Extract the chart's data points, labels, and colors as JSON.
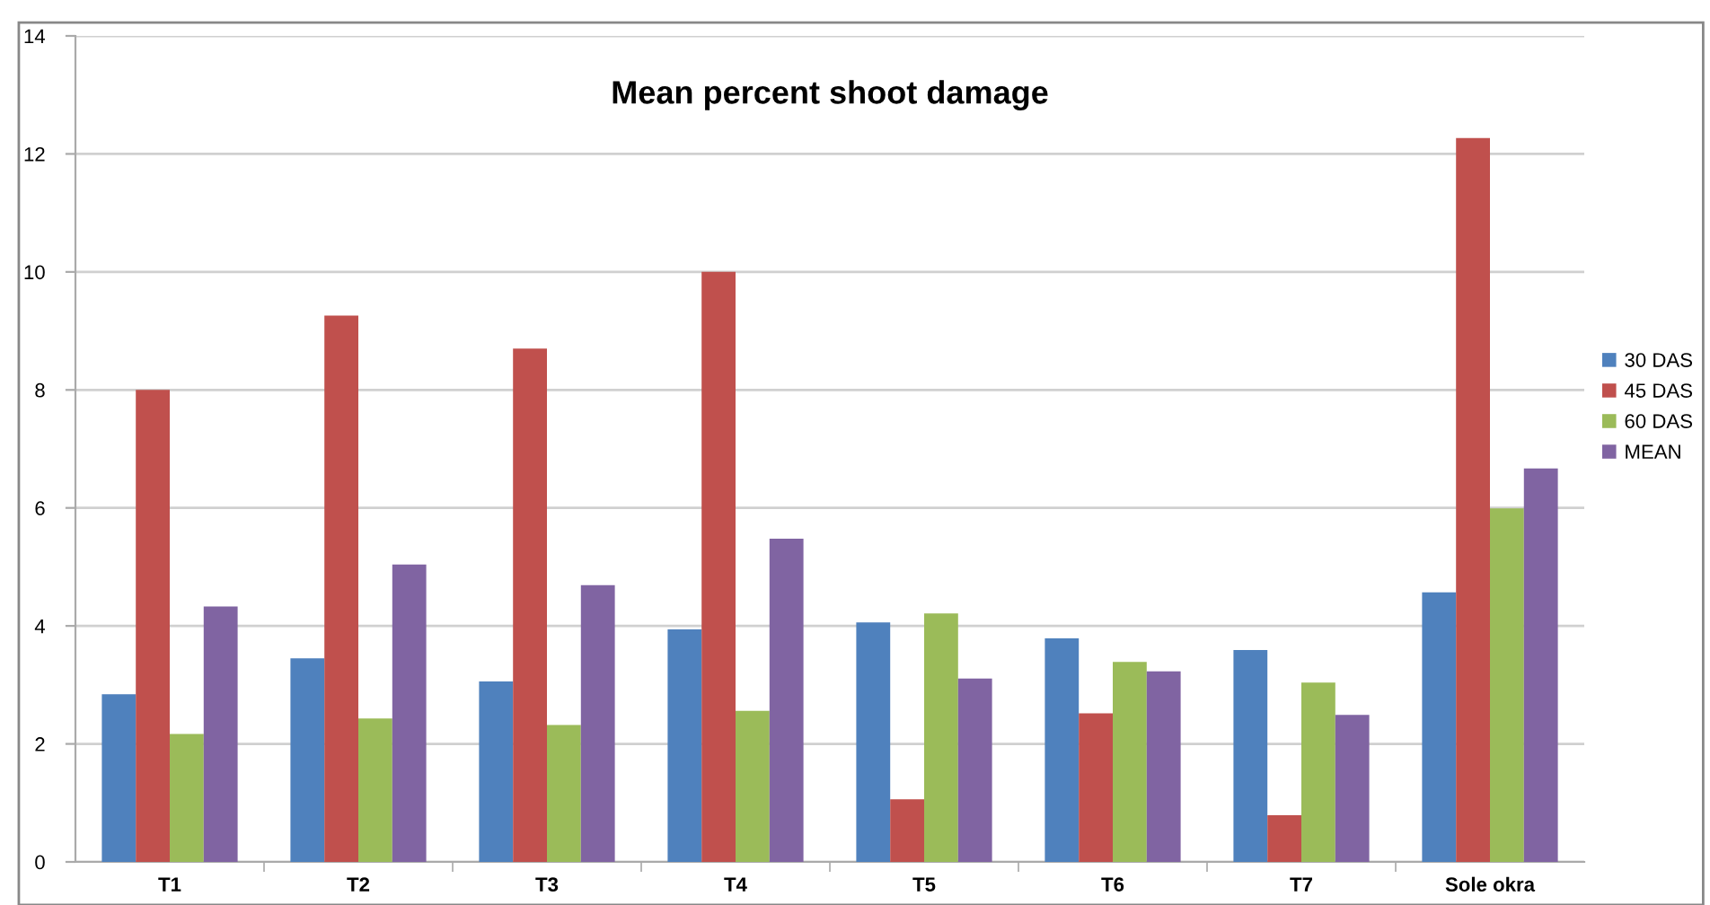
{
  "chart_data": {
    "type": "bar",
    "title": "Mean percent shoot damage",
    "categories": [
      "T1",
      "T2",
      "T3",
      "T4",
      "T5",
      "T6",
      "T7",
      "Sole okra"
    ],
    "series": [
      {
        "name": "30 DAS",
        "color": "#4f81bd",
        "values": [
          2.84,
          3.45,
          3.06,
          3.94,
          4.06,
          3.79,
          3.59,
          4.57
        ]
      },
      {
        "name": "45 DAS",
        "color": "#c0504d",
        "values": [
          8.0,
          9.26,
          8.7,
          10.0,
          1.06,
          2.52,
          0.79,
          12.27
        ]
      },
      {
        "name": "60 DAS",
        "color": "#9bbb59",
        "values": [
          2.17,
          2.43,
          2.32,
          2.56,
          4.21,
          3.39,
          3.04,
          5.99
        ]
      },
      {
        "name": "MEAN",
        "color": "#8064a2",
        "values": [
          4.33,
          5.04,
          4.69,
          5.48,
          3.11,
          3.23,
          2.49,
          6.67
        ]
      }
    ],
    "ylim": [
      0,
      14
    ],
    "yticks": [
      0,
      2,
      4,
      6,
      8,
      10,
      12,
      14
    ],
    "grid": "y",
    "legend": "right"
  }
}
